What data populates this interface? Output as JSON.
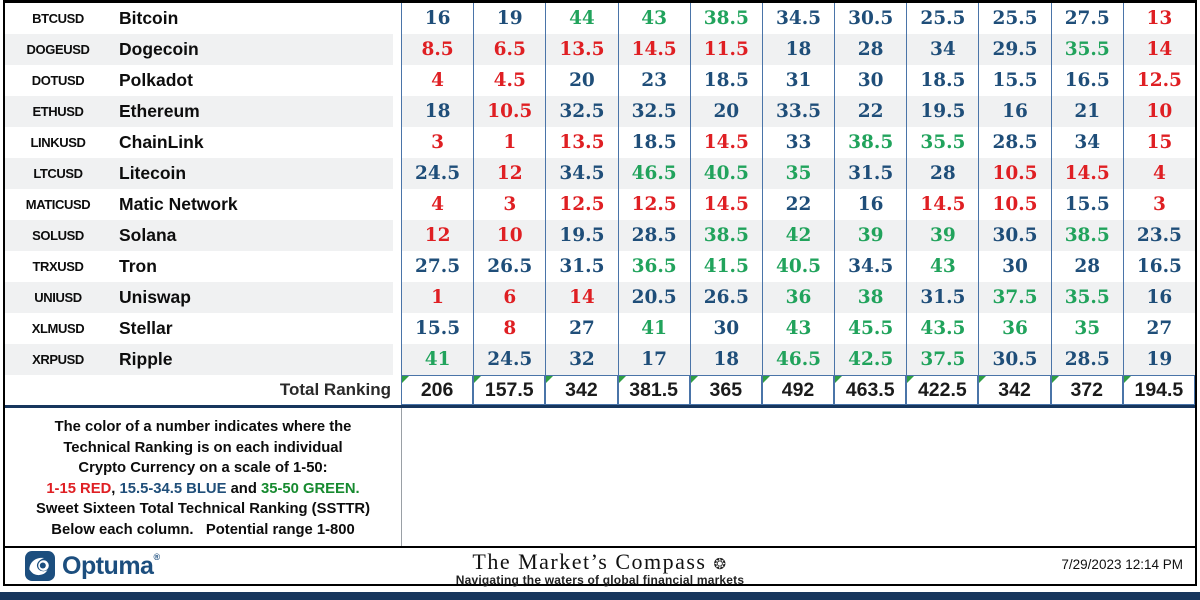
{
  "table": {
    "thresholds": {
      "red_max": 15,
      "green_min": 35
    },
    "rows": [
      {
        "ticker": "BTCUSD",
        "name": "Bitcoin",
        "values": [
          16,
          19,
          44,
          43,
          38.5,
          34.5,
          30.5,
          25.5,
          25.5,
          27.5,
          13
        ]
      },
      {
        "ticker": "DOGEUSD",
        "name": "Dogecoin",
        "values": [
          8.5,
          6.5,
          13.5,
          14.5,
          11.5,
          18,
          28,
          34,
          29.5,
          35.5,
          14
        ]
      },
      {
        "ticker": "DOTUSD",
        "name": "Polkadot",
        "values": [
          4,
          4.5,
          20,
          23,
          18.5,
          31,
          30,
          18.5,
          15.5,
          16.5,
          12.5
        ]
      },
      {
        "ticker": "ETHUSD",
        "name": "Ethereum",
        "values": [
          18,
          10.5,
          32.5,
          32.5,
          20,
          33.5,
          22,
          19.5,
          16,
          21,
          10
        ]
      },
      {
        "ticker": "LINKUSD",
        "name": "ChainLink",
        "values": [
          3,
          1,
          13.5,
          18.5,
          14.5,
          33,
          38.5,
          35.5,
          28.5,
          34,
          15
        ]
      },
      {
        "ticker": "LTCUSD",
        "name": "Litecoin",
        "values": [
          24.5,
          12,
          34.5,
          46.5,
          40.5,
          35,
          31.5,
          28,
          10.5,
          14.5,
          4
        ]
      },
      {
        "ticker": "MATICUSD",
        "name": "Matic Network",
        "values": [
          4,
          3,
          12.5,
          12.5,
          14.5,
          22,
          16,
          14.5,
          10.5,
          15.5,
          3
        ]
      },
      {
        "ticker": "SOLUSD",
        "name": "Solana",
        "values": [
          12,
          10,
          19.5,
          28.5,
          38.5,
          42,
          39,
          39,
          30.5,
          38.5,
          23.5
        ]
      },
      {
        "ticker": "TRXUSD",
        "name": "Tron",
        "values": [
          27.5,
          26.5,
          31.5,
          36.5,
          41.5,
          40.5,
          34.5,
          43,
          30,
          28,
          16.5
        ]
      },
      {
        "ticker": "UNIUSD",
        "name": "Uniswap",
        "values": [
          1,
          6,
          14,
          20.5,
          26.5,
          36,
          38,
          31.5,
          37.5,
          35.5,
          16
        ]
      },
      {
        "ticker": "XLMUSD",
        "name": "Stellar",
        "values": [
          15.5,
          8,
          27,
          41,
          30,
          43,
          45.5,
          43.5,
          36,
          35,
          27
        ]
      },
      {
        "ticker": "XRPUSD",
        "name": "Ripple",
        "values": [
          41,
          24.5,
          32,
          17,
          18,
          46.5,
          42.5,
          37.5,
          30.5,
          28.5,
          19
        ]
      }
    ],
    "total_label": "Total Ranking",
    "totals": [
      206,
      157.5,
      342,
      381.5,
      365,
      492,
      463.5,
      422.5,
      342,
      372,
      194.5
    ]
  },
  "legend": {
    "line1": "The color of a number indicates where the",
    "line2": "Technical Ranking is on each individual",
    "line3": "Crypto Currency on a scale of 1-50:",
    "scale_red": "1-15 RED",
    "scale_sep1": ", ",
    "scale_blue": "15.5-34.5 BLUE",
    "scale_sep2": " and ",
    "scale_green": "35-50 GREEN.",
    "line5": "Sweet Sixteen Total Technical Ranking (SSTTR)",
    "line6": "Below each column.   Potential range 1-800"
  },
  "footer": {
    "brand": "Optuma",
    "brand_mark": "®",
    "title": "The Market’s Compass",
    "compass_icon": "❂",
    "subtitle": "Navigating the waters of global financial markets",
    "timestamp": "7/29/2023 12:14 PM"
  },
  "colors": {
    "red": "#df1f23",
    "blue": "#1f4e79",
    "green": "#21a35c",
    "navy_bar": "#17365d"
  }
}
